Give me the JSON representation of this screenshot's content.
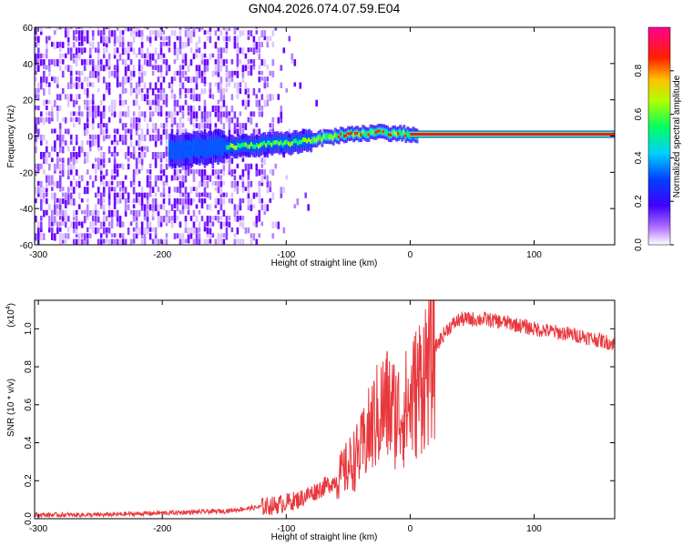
{
  "title": "GN04.2026.074.07.59.E04",
  "chart_data": [
    {
      "type": "heatmap",
      "xlabel": "Height of straight line (km)",
      "ylabel": "Frequency (Hz)",
      "xlim": [
        -303,
        165
      ],
      "ylim": [
        -60,
        60
      ],
      "xticks": [
        -300,
        -200,
        -100,
        0,
        100
      ],
      "yticks": [
        -60,
        -40,
        -20,
        0,
        20,
        40,
        60
      ],
      "colorbar": {
        "label": "Normalized spectral amplitude",
        "range": [
          0,
          1
        ],
        "ticks": [
          "0.0",
          "0.2",
          "0.4",
          "0.6",
          "0.8"
        ],
        "colors": [
          "#ffffff",
          "#7a00ff",
          "#0000ff",
          "#00c8ff",
          "#00ff64",
          "#c8ff00",
          "#ffc800",
          "#ff0000",
          "#ff0080"
        ]
      },
      "description_free": true,
      "noise_region_x": [
        -303,
        -110
      ],
      "signal_band": [
        {
          "x": -195,
          "f": -8
        },
        {
          "x": -150,
          "f": -6
        },
        {
          "x": -100,
          "f": -4
        },
        {
          "x": -60,
          "f": 0
        },
        {
          "x": -30,
          "f": 2
        },
        {
          "x": 0,
          "f": 1
        },
        {
          "x": 165,
          "f": 1
        }
      ]
    },
    {
      "type": "line",
      "xlabel": "Height of straight line (km)",
      "ylabel": "SNR (10 * v/v)",
      "y_multiplier": "(x10⁴)",
      "y_multiplier_base": "(x10",
      "y_multiplier_exp": "4",
      "y_multiplier_close": ")",
      "xlim": [
        -303,
        165
      ],
      "ylim": [
        0,
        1.15
      ],
      "xticks": [
        -300,
        -200,
        -100,
        0,
        100
      ],
      "yticks": [
        "0.0",
        "0.2",
        "0.4",
        "0.6",
        "0.8",
        "1.0"
      ],
      "color": "#e8383d",
      "series": [
        {
          "x": [
            -303,
            -250,
            -200,
            -150,
            -110,
            -90,
            -60,
            -40,
            -30,
            -20,
            -10,
            0,
            10,
            20,
            30,
            40,
            60,
            80,
            100,
            120,
            140,
            165
          ],
          "y": [
            0.02,
            0.02,
            0.03,
            0.04,
            0.07,
            0.1,
            0.2,
            0.35,
            0.5,
            0.6,
            0.55,
            0.6,
            0.75,
            0.9,
            1.0,
            1.05,
            1.05,
            1.03,
            1.0,
            0.98,
            0.96,
            0.92
          ]
        }
      ]
    }
  ]
}
